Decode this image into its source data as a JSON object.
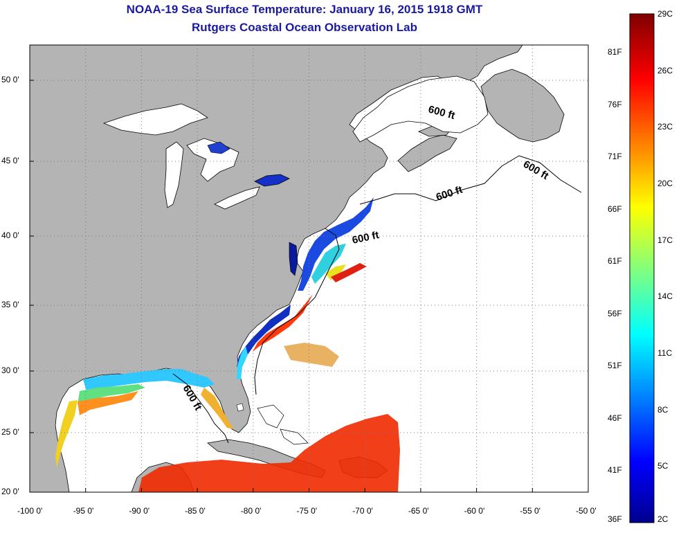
{
  "title": {
    "line1": "NOAA-19 Sea Surface Temperature:  January 16, 2015 1918 GMT",
    "line2": "Rutgers Coastal Ocean Observation Lab"
  },
  "map": {
    "lon_range": [
      -100,
      -50
    ],
    "lat_range": [
      20,
      52.5
    ],
    "lon_ticks": [
      {
        "value": -100,
        "label": "-100 0'"
      },
      {
        "value": -95,
        "label": "-95 0'"
      },
      {
        "value": -90,
        "label": "-90 0'"
      },
      {
        "value": -85,
        "label": "-85 0'"
      },
      {
        "value": -80,
        "label": "-80 0'"
      },
      {
        "value": -75,
        "label": "-75 0'"
      },
      {
        "value": -70,
        "label": "-70 0'"
      },
      {
        "value": -65,
        "label": "-65 0'"
      },
      {
        "value": -60,
        "label": "-60 0'"
      },
      {
        "value": -55,
        "label": "-55 0'"
      },
      {
        "value": -50,
        "label": "-50 0'"
      }
    ],
    "lat_ticks": [
      {
        "value": 50,
        "label": "50 0'"
      },
      {
        "value": 45,
        "label": "45 0'"
      },
      {
        "value": 40,
        "label": "40 0'"
      },
      {
        "value": 35,
        "label": "35 0'"
      },
      {
        "value": 30,
        "label": "30 0'"
      },
      {
        "value": 25,
        "label": "25 0'"
      },
      {
        "value": 20,
        "label": "20 0'"
      }
    ],
    "depth_labels": [
      "600 ft",
      "600 ft",
      "600 ft",
      "600 ft",
      "600 ft"
    ],
    "colors": {
      "land": "#b4b4b4",
      "ocean": "#ffffff",
      "grid": "#7a7a7a"
    }
  },
  "colorbar": {
    "celsius_labels": [
      "29C",
      "26C",
      "23C",
      "20C",
      "17C",
      "14C",
      "11C",
      "8C",
      "5C",
      "2C"
    ],
    "fahrenheit_labels": [
      "81F",
      "76F",
      "71F",
      "66F",
      "61F",
      "56F",
      "51F",
      "46F",
      "41F",
      "36F"
    ],
    "colors": [
      "#7f0000",
      "#ff0000",
      "#ff8000",
      "#ffff00",
      "#80ff80",
      "#00ffff",
      "#0080ff",
      "#0000ff",
      "#00008f"
    ]
  }
}
